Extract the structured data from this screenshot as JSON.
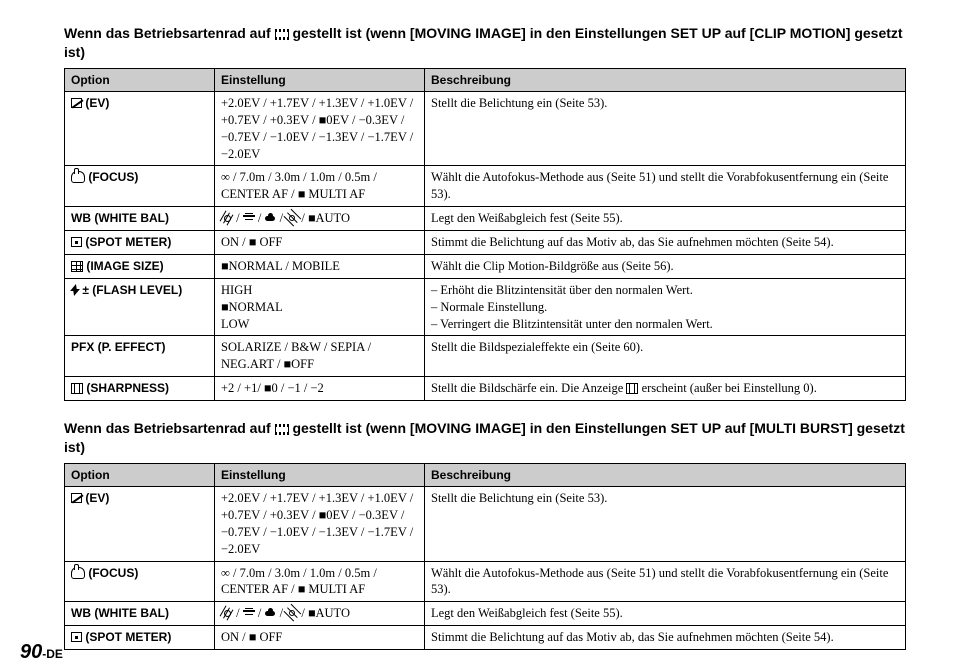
{
  "section1": {
    "heading_parts": [
      "Wenn das Betriebsartenrad auf ",
      " gestellt ist (wenn [MOVING IMAGE] in den Einstellungen SET UP auf [CLIP MOTION] gesetzt ist)"
    ],
    "headers": [
      "Option",
      "Einstellung",
      "Beschreibung"
    ],
    "rows": {
      "ev": {
        "opt": " (EV)",
        "set": "+2.0EV / +1.7EV / +1.3EV / +1.0EV / +0.7EV / +0.3EV / ■0EV / −0.3EV / −0.7EV / −1.0EV / −1.3EV / −1.7EV / −2.0EV",
        "desc": "Stellt die Belichtung ein (Seite 53)."
      },
      "focus": {
        "opt": " (FOCUS)",
        "set": "∞ / 7.0m / 3.0m / 1.0m / 0.5m / CENTER AF / ■ MULTI AF",
        "desc": "Wählt die Autofokus-Methode aus (Seite 51) und stellt die Vorabfokusentfernung ein (Seite 53)."
      },
      "wb": {
        "opt": "WB (WHITE BAL)",
        "set_tail": " ■AUTO",
        "desc": "Legt den Weißabgleich fest (Seite 55)."
      },
      "spot": {
        "opt": " (SPOT METER)",
        "set": "ON / ■ OFF",
        "desc": "Stimmt die Belichtung auf das Motiv ab, das Sie aufnehmen möchten (Seite 54)."
      },
      "imgsize": {
        "opt": " (IMAGE SIZE)",
        "set": "■NORMAL / MOBILE",
        "desc": "Wählt die Clip Motion-Bildgröße aus (Seite 56)."
      },
      "flash": {
        "opt": " ± (FLASH LEVEL)",
        "set": "HIGH\n■NORMAL\nLOW",
        "desc": "– Erhöht die Blitzintensität über den normalen Wert.\n– Normale Einstellung.\n– Verringert die Blitzintensität unter den normalen Wert."
      },
      "pfx": {
        "opt": "PFX (P. EFFECT)",
        "set": "SOLARIZE / B&W / SEPIA / NEG.ART / ■OFF",
        "desc": "Stellt die Bildspezialeffekte ein (Seite 60)."
      },
      "sharp": {
        "opt": " (SHARPNESS)",
        "set": "+2 / +1/ ■0 / −1 / −2",
        "desc_parts": [
          "Stellt die Bildschärfe ein. Die Anzeige ",
          " erscheint (außer bei Einstellung 0)."
        ]
      }
    }
  },
  "section2": {
    "heading_parts": [
      "Wenn das Betriebsartenrad auf ",
      " gestellt ist (wenn [MOVING IMAGE] in den Einstellungen SET UP auf [MULTI BURST] gesetzt ist)"
    ],
    "headers": [
      "Option",
      "Einstellung",
      "Beschreibung"
    ],
    "rows": {
      "ev": {
        "opt": " (EV)",
        "set": "+2.0EV / +1.7EV / +1.3EV / +1.0EV / +0.7EV / +0.3EV / ■0EV / −0.3EV / −0.7EV / −1.0EV / −1.3EV / −1.7EV / −2.0EV",
        "desc": "Stellt die Belichtung ein (Seite 53)."
      },
      "focus": {
        "opt": " (FOCUS)",
        "set": "∞ / 7.0m / 3.0m / 1.0m / 0.5m / CENTER AF / ■ MULTI AF",
        "desc": "Wählt die Autofokus-Methode aus (Seite 51) und stellt die Vorabfokusentfernung ein (Seite 53)."
      },
      "wb": {
        "opt": "WB (WHITE BAL)",
        "set_tail": " ■AUTO",
        "desc": "Legt den Weißabgleich fest (Seite 55)."
      },
      "spot": {
        "opt": " (SPOT METER)",
        "set": "ON / ■ OFF",
        "desc": "Stimmt die Belichtung auf das Motiv ab, das Sie aufnehmen möchten (Seite 54)."
      }
    }
  },
  "page_no_big": "90",
  "page_no_small": "-DE"
}
